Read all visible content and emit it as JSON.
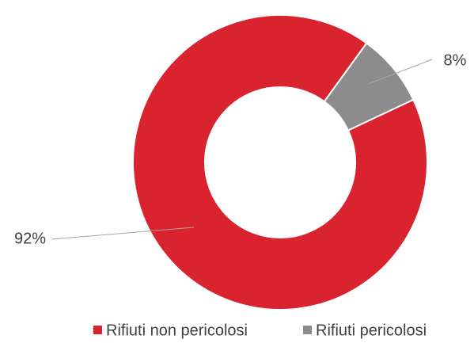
{
  "chart_data": {
    "type": "donut",
    "categories": [
      "Rifiuti non pericolosi",
      "Rifiuti pericolosi"
    ],
    "values": [
      92,
      8
    ],
    "value_labels": [
      "92%",
      "8%"
    ],
    "colors": [
      "#d9232e",
      "#8c8c8c"
    ],
    "legend": "bottom"
  }
}
